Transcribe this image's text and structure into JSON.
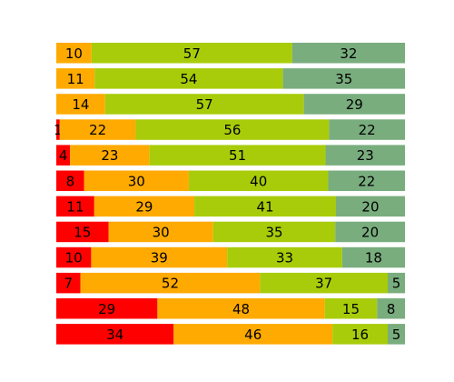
{
  "chart_data": {
    "type": "bar",
    "orientation": "horizontal",
    "stacked": true,
    "normalized": true,
    "grid": false,
    "axes_visible": false,
    "colors": [
      "#ff0000",
      "#ffaa00",
      "#a8cc0a",
      "#79ad7e"
    ],
    "rows": [
      [
        0,
        10,
        57,
        32
      ],
      [
        0,
        11,
        54,
        35
      ],
      [
        0,
        14,
        57,
        29
      ],
      [
        1,
        22,
        56,
        22
      ],
      [
        4,
        23,
        51,
        23
      ],
      [
        8,
        30,
        40,
        22
      ],
      [
        11,
        29,
        41,
        20
      ],
      [
        15,
        30,
        35,
        20
      ],
      [
        10,
        39,
        33,
        18
      ],
      [
        7,
        52,
        37,
        5
      ],
      [
        29,
        48,
        15,
        8
      ],
      [
        34,
        46,
        16,
        5
      ]
    ]
  }
}
